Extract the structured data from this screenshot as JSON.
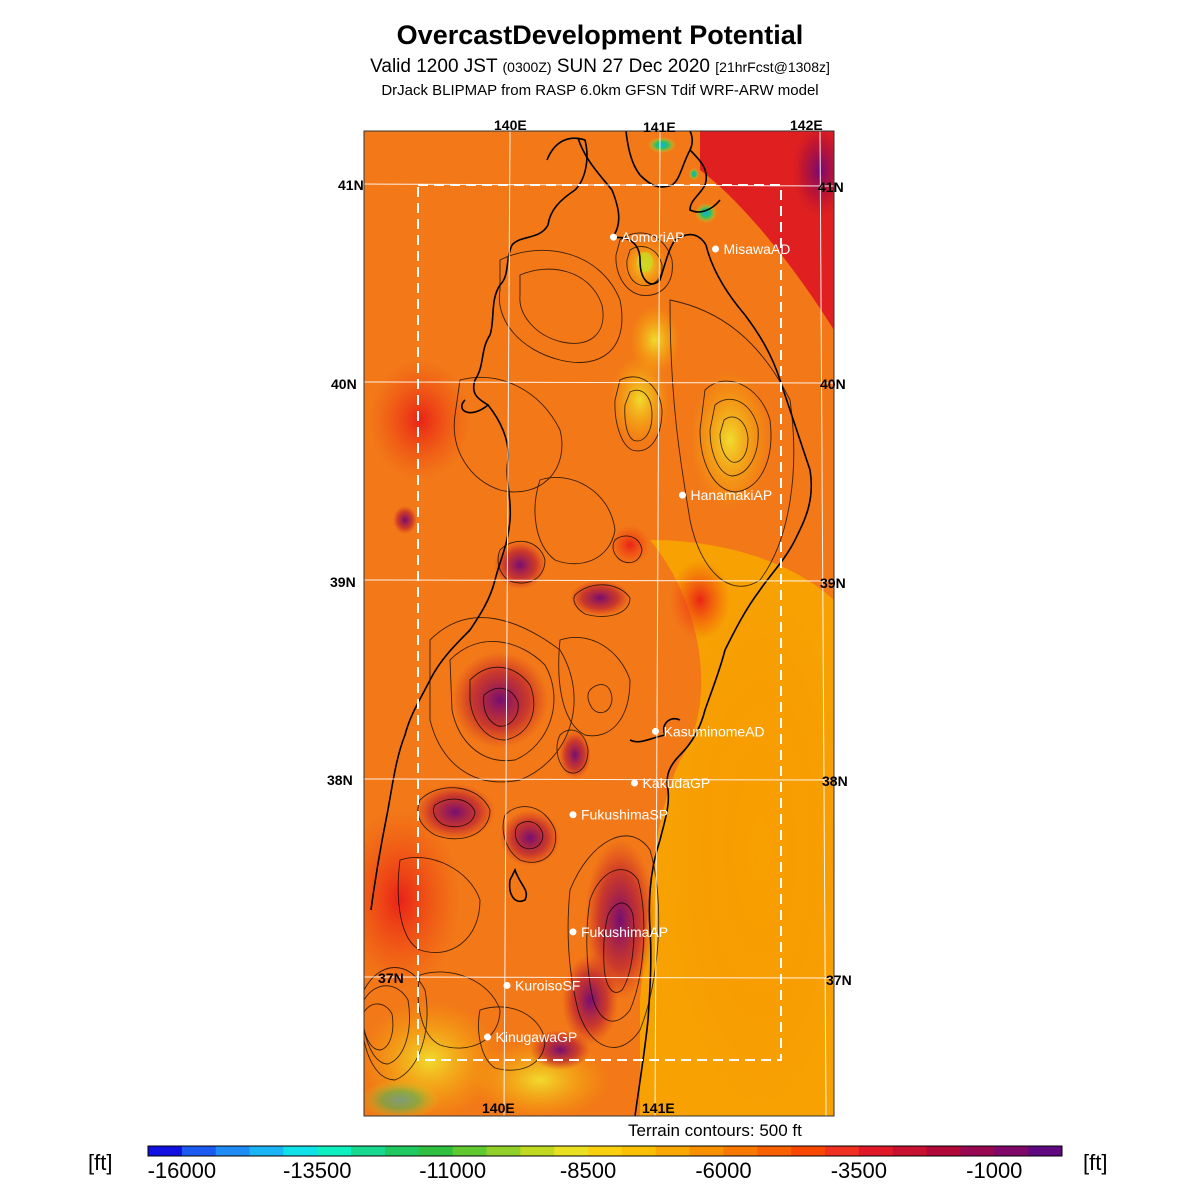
{
  "title": "OvercastDevelopment Potential",
  "subtitle": {
    "valid": "Valid 1200 JST",
    "utc": "(0300Z)",
    "date": "SUN 27 Dec 2020",
    "fcst": "[21hrFcst@1308z]"
  },
  "source": "DrJack BLIPMAP from RASP 6.0km GFSN Tdif WRF-ARW model",
  "map": {
    "lon_labels_top": [
      "140E",
      "141E",
      "142E"
    ],
    "lon_labels_bottom": [
      "140E",
      "141E"
    ],
    "lat_labels_left": [
      "41N",
      "40N",
      "39N",
      "38N",
      "37N"
    ],
    "lat_labels_right": [
      "41N",
      "40N",
      "39N",
      "38N",
      "37N"
    ],
    "lon_range": [
      139.0,
      142.05
    ],
    "lat_range": [
      36.35,
      41.27
    ],
    "stations": [
      {
        "name": "AomoriAP",
        "lon": 140.69,
        "lat": 40.73
      },
      {
        "name": "MisawaAD",
        "lon": 141.37,
        "lat": 40.67
      },
      {
        "name": "HanamakiAP",
        "lon": 141.15,
        "lat": 39.43
      },
      {
        "name": "KasuminomeAD",
        "lon": 140.97,
        "lat": 38.24
      },
      {
        "name": "KakudaGP",
        "lon": 140.83,
        "lat": 37.98
      },
      {
        "name": "FukushimaSP",
        "lon": 140.42,
        "lat": 37.82
      },
      {
        "name": "FukushimaAP",
        "lon": 140.42,
        "lat": 37.23
      },
      {
        "name": "KuroisoSF",
        "lon": 139.98,
        "lat": 36.96
      },
      {
        "name": "KinugawaGP",
        "lon": 139.85,
        "lat": 36.7
      }
    ]
  },
  "terrain_note": "Terrain contours: 500 ft",
  "colorbar": {
    "unit_left": "[ft]",
    "unit_right": "[ft]",
    "tick_labels": [
      "-16000",
      "-13500",
      "-11000",
      "-8500",
      "-6000",
      "-3500",
      "-1000"
    ],
    "colors": [
      "#1010e0",
      "#1a5af0",
      "#1f8cf5",
      "#1bb5f5",
      "#10e0e8",
      "#0ef0c0",
      "#18d890",
      "#20c860",
      "#30c040",
      "#60c830",
      "#90d028",
      "#c0d820",
      "#e8e020",
      "#f8d010",
      "#f8c000",
      "#f8a800",
      "#f89000",
      "#f87800",
      "#f86000",
      "#f84800",
      "#f03020",
      "#e01828",
      "#c81030",
      "#b00838",
      "#980850",
      "#800868",
      "#600880"
    ]
  }
}
